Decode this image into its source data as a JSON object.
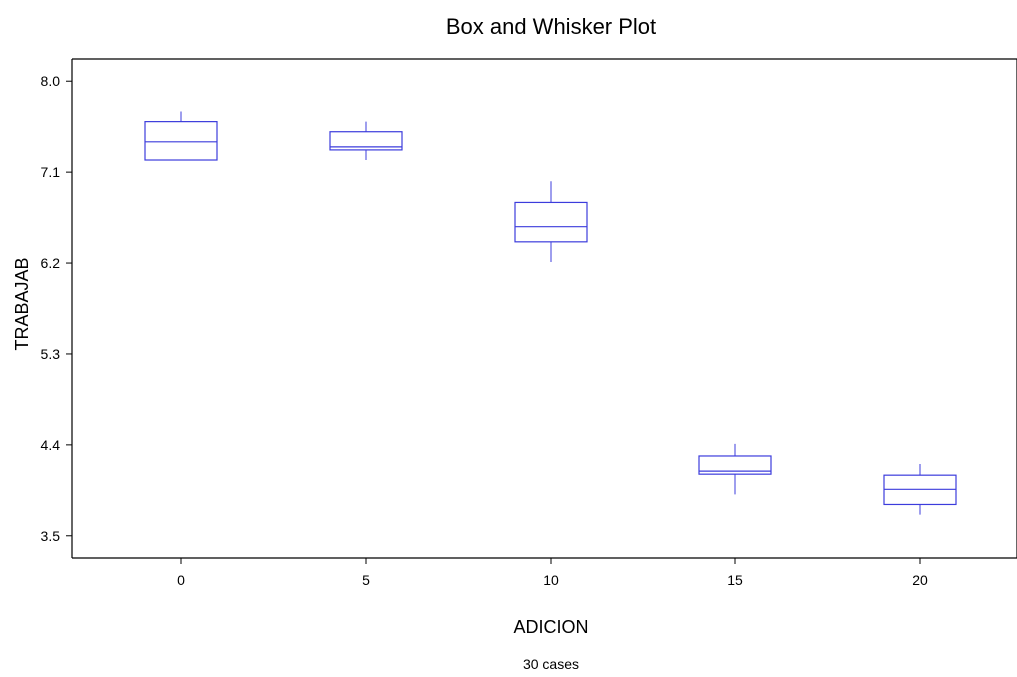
{
  "chart_data": {
    "type": "box",
    "title": "Box and Whisker Plot",
    "xlabel": "ADICION",
    "ylabel": "TRABAJAB",
    "footnote": "30 cases",
    "categories": [
      "0",
      "5",
      "10",
      "15",
      "20"
    ],
    "yticks": [
      "3.5",
      "4.4",
      "5.3",
      "6.2",
      "7.1",
      "8.0"
    ],
    "ylim": [
      3.28,
      8.22
    ],
    "boxes": [
      {
        "category": "0",
        "min": 7.22,
        "q1": 7.22,
        "median": 7.4,
        "q3": 7.6,
        "max": 7.7
      },
      {
        "category": "5",
        "min": 7.22,
        "q1": 7.32,
        "median": 7.35,
        "q3": 7.5,
        "max": 7.6
      },
      {
        "category": "10",
        "min": 6.21,
        "q1": 6.41,
        "median": 6.56,
        "q3": 6.8,
        "max": 7.01
      },
      {
        "category": "15",
        "min": 3.91,
        "q1": 4.11,
        "median": 4.14,
        "q3": 4.29,
        "max": 4.41
      },
      {
        "category": "20",
        "min": 3.71,
        "q1": 3.81,
        "median": 3.96,
        "q3": 4.1,
        "max": 4.21
      }
    ],
    "box_color": "#3c3cdc",
    "grid": false,
    "legend": "none"
  }
}
